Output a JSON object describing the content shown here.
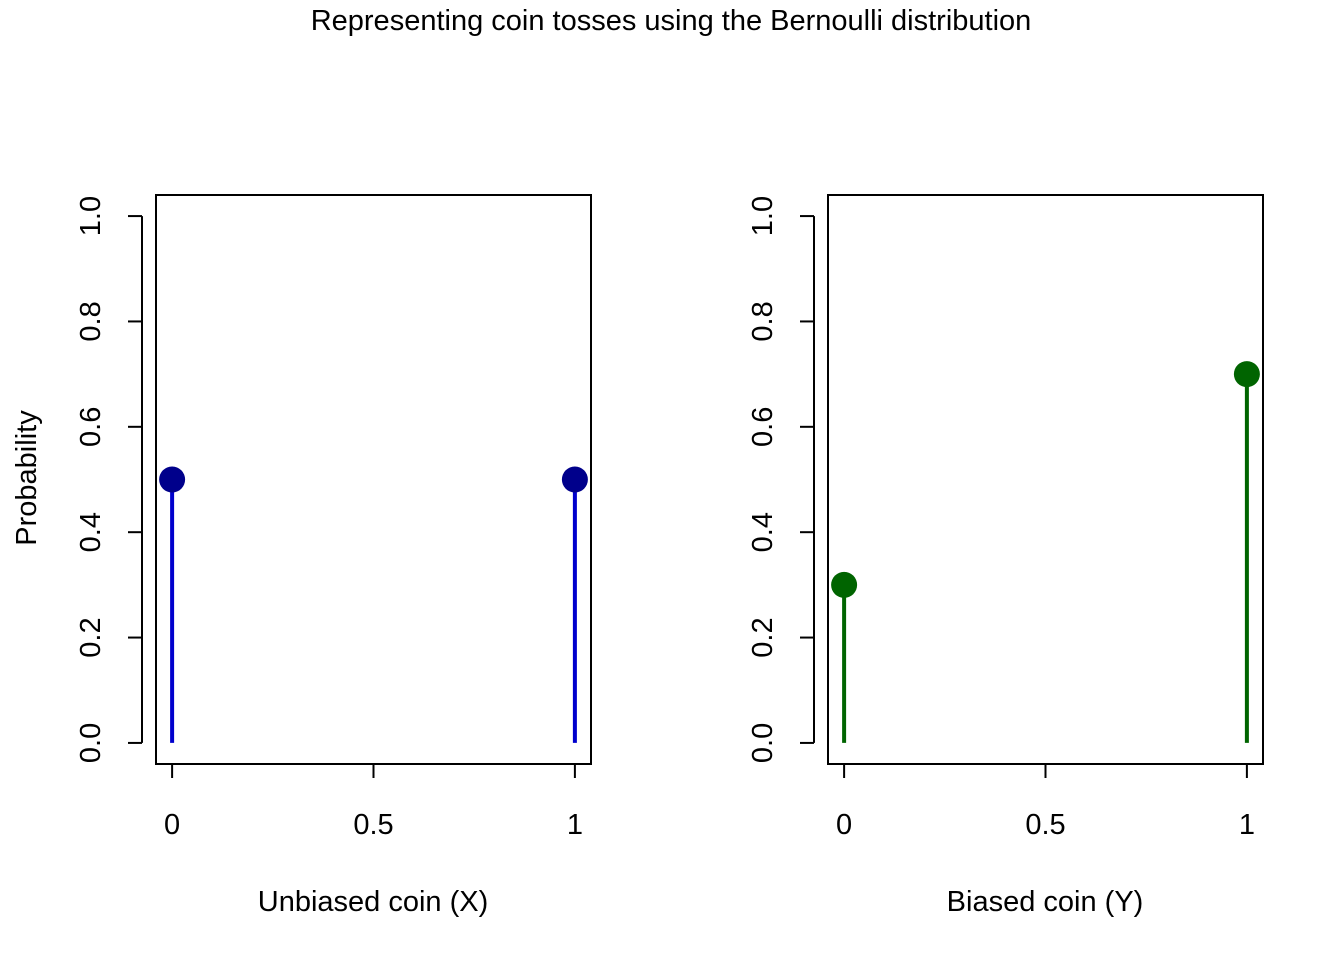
{
  "chart_data": {
    "title": "Representing coin tosses using the Bernoulli distribution",
    "ylabel": "Probability",
    "panels": [
      {
        "type": "stem",
        "xlabel": "Unbiased coin (X)",
        "x": [
          0,
          1
        ],
        "values": [
          0.5,
          0.5
        ],
        "xlim": [
          -0.04,
          1.04
        ],
        "ylim": [
          -0.04,
          1.04
        ],
        "xticks": [
          0,
          0.5,
          1
        ],
        "xtick_labels": [
          "0",
          "0.5",
          "1"
        ],
        "yticks": [
          0,
          0.2,
          0.4,
          0.6,
          0.8,
          1.0
        ],
        "ytick_labels": [
          "0.0",
          "0.2",
          "0.4",
          "0.6",
          "0.8",
          "1.0"
        ],
        "line_color": "#0000CD",
        "point_color": "#00008B"
      },
      {
        "type": "stem",
        "xlabel": "Biased coin (Y)",
        "x": [
          0,
          1
        ],
        "values": [
          0.3,
          0.7
        ],
        "xlim": [
          -0.04,
          1.04
        ],
        "ylim": [
          -0.04,
          1.04
        ],
        "xticks": [
          0,
          0.5,
          1
        ],
        "xtick_labels": [
          "0",
          "0.5",
          "1"
        ],
        "yticks": [
          0,
          0.2,
          0.4,
          0.6,
          0.8,
          1.0
        ],
        "ytick_labels": [
          "0.0",
          "0.2",
          "0.4",
          "0.6",
          "0.8",
          "1.0"
        ],
        "line_color": "#006400",
        "point_color": "#006400"
      }
    ]
  }
}
